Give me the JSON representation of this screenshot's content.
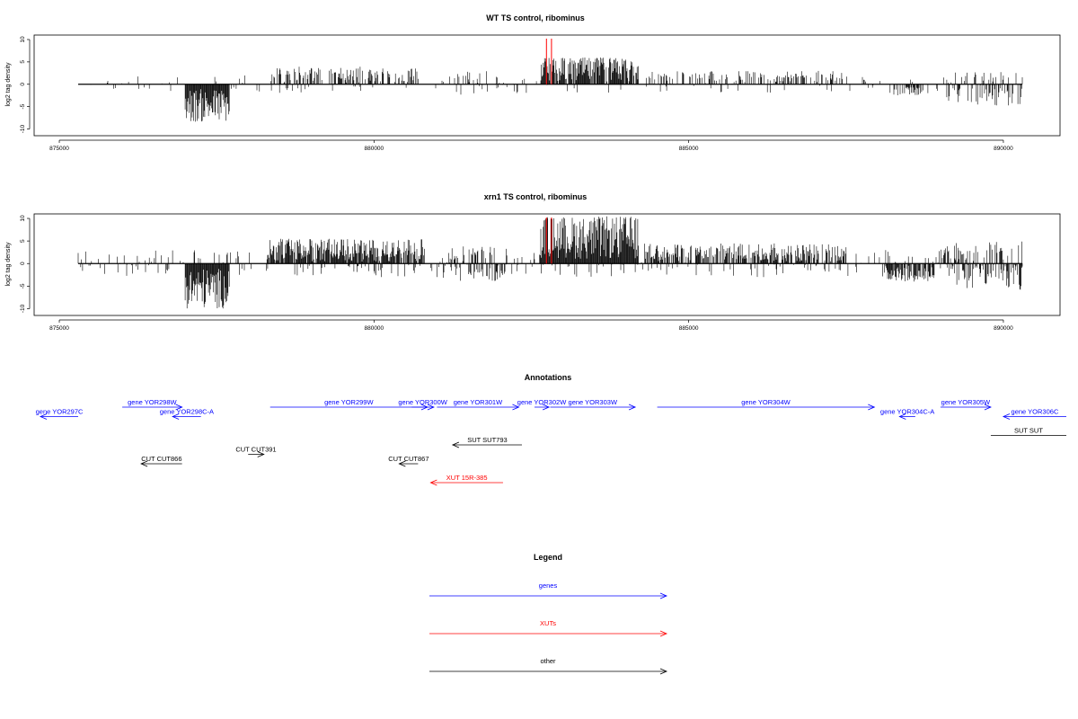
{
  "chart_data": [
    {
      "type": "bar",
      "title": "WT TS control, ribominus",
      "ylabel": "log2 tag density",
      "xlim": [
        874600,
        890900
      ],
      "ylim": [
        -11.5,
        11
      ],
      "yticks": [
        -10,
        -5,
        0,
        5,
        10
      ],
      "xticks": [
        875000,
        880000,
        885000,
        890000
      ],
      "grid": false,
      "highlights": [
        882740,
        882820
      ],
      "regions": [
        {
          "start": 875300,
          "end": 890300,
          "density": 0.12,
          "min": -2,
          "max": 2
        },
        {
          "start": 877000,
          "end": 877700,
          "density": 1.0,
          "min": -8.5,
          "max": -1
        },
        {
          "start": 878300,
          "end": 880700,
          "density": 0.4,
          "min": 0.5,
          "max": 4
        },
        {
          "start": 881200,
          "end": 881800,
          "density": 0.3,
          "min": -2.5,
          "max": 3
        },
        {
          "start": 882650,
          "end": 884200,
          "density": 0.85,
          "min": 0.5,
          "max": 6
        },
        {
          "start": 884300,
          "end": 887800,
          "density": 0.3,
          "min": 0.5,
          "max": 3
        },
        {
          "start": 888200,
          "end": 888700,
          "density": 0.5,
          "min": -2.5,
          "max": -0.5
        },
        {
          "start": 889100,
          "end": 890300,
          "density": 0.5,
          "min": -5,
          "max": 3
        }
      ]
    },
    {
      "type": "bar",
      "title": "xrn1 TS control, ribominus",
      "ylabel": "log2 tag density",
      "xlim": [
        874600,
        890900
      ],
      "ylim": [
        -11.5,
        11
      ],
      "yticks": [
        -10,
        -5,
        0,
        5,
        10
      ],
      "xticks": [
        875000,
        880000,
        885000,
        890000
      ],
      "grid": false,
      "highlights": [
        882740,
        882820
      ],
      "regions": [
        {
          "start": 875300,
          "end": 890300,
          "density": 0.25,
          "min": -3,
          "max": 3
        },
        {
          "start": 877000,
          "end": 877700,
          "density": 1.0,
          "min": -10,
          "max": -1
        },
        {
          "start": 878300,
          "end": 880800,
          "density": 0.85,
          "min": 0.5,
          "max": 5.5
        },
        {
          "start": 881000,
          "end": 882100,
          "density": 0.6,
          "min": -4,
          "max": 4
        },
        {
          "start": 882650,
          "end": 884200,
          "density": 1.0,
          "min": 1,
          "max": 10.5
        },
        {
          "start": 884300,
          "end": 887500,
          "density": 0.6,
          "min": 0.5,
          "max": 4.5
        },
        {
          "start": 888100,
          "end": 888900,
          "density": 0.7,
          "min": -4,
          "max": -0.5
        },
        {
          "start": 889000,
          "end": 890300,
          "density": 0.8,
          "min": -6,
          "max": 5
        }
      ]
    }
  ],
  "annotations": {
    "title": "Annotations",
    "features": [
      {
        "label": "gene YOR297C",
        "start": 875300,
        "end": 874700,
        "row": 1,
        "kind": "gene"
      },
      {
        "label": "gene YOR298W",
        "start": 876000,
        "end": 876950,
        "row": 0,
        "kind": "gene"
      },
      {
        "label": "gene YOR298C-A",
        "start": 877250,
        "end": 876800,
        "row": 1,
        "kind": "gene"
      },
      {
        "label": "gene YOR299W",
        "start": 878350,
        "end": 880850,
        "row": 0,
        "kind": "gene"
      },
      {
        "label": "gene YOR300W",
        "start": 880600,
        "end": 880950,
        "row": 0,
        "kind": "gene"
      },
      {
        "label": "gene YOR301W",
        "start": 881000,
        "end": 882300,
        "row": 0,
        "kind": "gene"
      },
      {
        "label": "gene YOR302W",
        "start": 882550,
        "end": 882780,
        "row": 0,
        "kind": "gene"
      },
      {
        "label": "gene YOR303W",
        "start": 882800,
        "end": 884150,
        "row": 0,
        "kind": "gene"
      },
      {
        "label": "gene YOR304W",
        "start": 884500,
        "end": 887950,
        "row": 0,
        "kind": "gene"
      },
      {
        "label": "gene YOR304C-A",
        "start": 888600,
        "end": 888350,
        "row": 1,
        "kind": "gene"
      },
      {
        "label": "gene YOR305W",
        "start": 889000,
        "end": 889800,
        "row": 0,
        "kind": "gene"
      },
      {
        "label": "gene YOR306C",
        "start": 891000,
        "end": 890000,
        "row": 1,
        "kind": "gene"
      },
      {
        "label": "SUT SUT793",
        "start": 882350,
        "end": 881250,
        "row": 4,
        "kind": "other"
      },
      {
        "label": "SUT SUT",
        "start": 889800,
        "end": 891000,
        "row": 3,
        "kind": "other"
      },
      {
        "label": "CUT CUT391",
        "start": 878000,
        "end": 878250,
        "row": 5,
        "kind": "other"
      },
      {
        "label": "CUT CUT866",
        "start": 876950,
        "end": 876300,
        "row": 6,
        "kind": "other"
      },
      {
        "label": "CUT CUT867",
        "start": 880700,
        "end": 880400,
        "row": 6,
        "kind": "other"
      },
      {
        "label": "XUT 15R-385",
        "start": 882050,
        "end": 880900,
        "row": 8,
        "kind": "xut"
      }
    ]
  },
  "legend": {
    "title": "Legend",
    "items": [
      {
        "label": "genes",
        "color": "#0000ff"
      },
      {
        "label": "XUTs",
        "color": "#ff0000"
      },
      {
        "label": "other",
        "color": "#000000"
      }
    ]
  },
  "colors": {
    "gene": "#0000ff",
    "xut": "#ff0000",
    "other": "#000000",
    "highlight": "#ff0000"
  }
}
